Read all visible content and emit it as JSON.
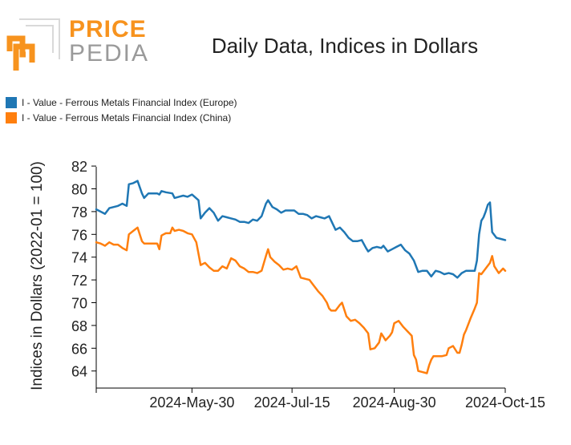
{
  "logo": {
    "word1": "PRICE",
    "word2": "PEDIA"
  },
  "title": "Daily Data, Indices in Dollars",
  "legend": [
    {
      "label": "I - Value - Ferrous Metals Financial Index (Europe)",
      "color": "#1f77b4"
    },
    {
      "label": "I - Value - Ferrous Metals Financial Index (China)",
      "color": "#ff7f0e"
    }
  ],
  "chart_data": {
    "type": "line",
    "title": "Daily Data, Indices in Dollars",
    "xlabel": "",
    "ylabel": "Indices in Dollars (2022-01 = 100)",
    "xlim": [
      0,
      188
    ],
    "ylim": [
      62.5,
      82.5
    ],
    "yticks": [
      64,
      66,
      68,
      70,
      72,
      74,
      76,
      78,
      80,
      82
    ],
    "xticks": [
      {
        "x": 0,
        "label": ""
      },
      {
        "x": 44,
        "label": "2024-May-30"
      },
      {
        "x": 90,
        "label": "2024-Jul-15"
      },
      {
        "x": 137,
        "label": "2024-Aug-30"
      },
      {
        "x": 188,
        "label": "2024-Oct-15"
      }
    ],
    "x_unit": "days since 2024-Apr-16",
    "series": [
      {
        "name": "I - Value - Ferrous Metals Financial Index (Europe)",
        "color": "#1f77b4",
        "points": [
          [
            0,
            78.2
          ],
          [
            2,
            78.0
          ],
          [
            4,
            77.8
          ],
          [
            6,
            78.3
          ],
          [
            8,
            78.4
          ],
          [
            10,
            78.5
          ],
          [
            12,
            78.7
          ],
          [
            14,
            78.5
          ],
          [
            15,
            80.4
          ],
          [
            17,
            80.5
          ],
          [
            19,
            80.7
          ],
          [
            21,
            79.6
          ],
          [
            22,
            79.2
          ],
          [
            24,
            79.6
          ],
          [
            26,
            79.6
          ],
          [
            28,
            79.6
          ],
          [
            29,
            79.5
          ],
          [
            30,
            79.8
          ],
          [
            32,
            79.7
          ],
          [
            35,
            79.6
          ],
          [
            36,
            79.2
          ],
          [
            38,
            79.3
          ],
          [
            40,
            79.4
          ],
          [
            42,
            79.3
          ],
          [
            44,
            79.5
          ],
          [
            47,
            79.0
          ],
          [
            48,
            77.4
          ],
          [
            50,
            77.9
          ],
          [
            52,
            78.3
          ],
          [
            54,
            77.9
          ],
          [
            56,
            77.2
          ],
          [
            58,
            77.6
          ],
          [
            60,
            77.5
          ],
          [
            62,
            77.4
          ],
          [
            64,
            77.3
          ],
          [
            66,
            77.1
          ],
          [
            68,
            77.1
          ],
          [
            70,
            77.0
          ],
          [
            72,
            77.3
          ],
          [
            74,
            77.2
          ],
          [
            76,
            77.6
          ],
          [
            78,
            78.7
          ],
          [
            79,
            79.0
          ],
          [
            81,
            78.4
          ],
          [
            83,
            78.2
          ],
          [
            85,
            77.9
          ],
          [
            87,
            78.1
          ],
          [
            89,
            78.1
          ],
          [
            91,
            78.1
          ],
          [
            93,
            77.8
          ],
          [
            95,
            77.8
          ],
          [
            97,
            77.7
          ],
          [
            99,
            77.4
          ],
          [
            101,
            77.6
          ],
          [
            103,
            77.5
          ],
          [
            105,
            77.4
          ],
          [
            107,
            77.6
          ],
          [
            110,
            76.4
          ],
          [
            112,
            76.6
          ],
          [
            114,
            76.2
          ],
          [
            116,
            75.7
          ],
          [
            118,
            75.4
          ],
          [
            120,
            75.4
          ],
          [
            122,
            75.5
          ],
          [
            124,
            74.8
          ],
          [
            125,
            74.5
          ],
          [
            127,
            74.8
          ],
          [
            129,
            74.9
          ],
          [
            131,
            74.8
          ],
          [
            132,
            75.0
          ],
          [
            134,
            74.5
          ],
          [
            136,
            74.7
          ],
          [
            138,
            74.9
          ],
          [
            140,
            75.1
          ],
          [
            142,
            74.6
          ],
          [
            144,
            74.3
          ],
          [
            146,
            73.7
          ],
          [
            148,
            72.7
          ],
          [
            150,
            72.8
          ],
          [
            152,
            72.8
          ],
          [
            154,
            72.3
          ],
          [
            156,
            72.8
          ],
          [
            158,
            72.7
          ],
          [
            160,
            72.5
          ],
          [
            162,
            72.6
          ],
          [
            164,
            72.5
          ],
          [
            166,
            72.2
          ],
          [
            168,
            72.6
          ],
          [
            170,
            72.8
          ],
          [
            172,
            72.8
          ],
          [
            174,
            72.8
          ],
          [
            175,
            73.7
          ],
          [
            176,
            76.0
          ],
          [
            177,
            77.2
          ],
          [
            178,
            77.5
          ],
          [
            179,
            78.0
          ],
          [
            180,
            78.6
          ],
          [
            181,
            78.8
          ],
          [
            182,
            76.2
          ],
          [
            184,
            75.7
          ],
          [
            186,
            75.6
          ],
          [
            188,
            75.5
          ]
        ]
      },
      {
        "name": "I - Value - Ferrous Metals Financial Index (China)",
        "color": "#ff7f0e",
        "points": [
          [
            0,
            75.3
          ],
          [
            2,
            75.2
          ],
          [
            4,
            75.0
          ],
          [
            6,
            75.3
          ],
          [
            8,
            75.1
          ],
          [
            10,
            75.1
          ],
          [
            12,
            74.8
          ],
          [
            14,
            74.6
          ],
          [
            15,
            76.0
          ],
          [
            17,
            76.3
          ],
          [
            19,
            76.6
          ],
          [
            21,
            75.4
          ],
          [
            22,
            75.2
          ],
          [
            24,
            75.2
          ],
          [
            26,
            75.2
          ],
          [
            28,
            75.2
          ],
          [
            29,
            74.7
          ],
          [
            30,
            75.9
          ],
          [
            32,
            76.1
          ],
          [
            34,
            76.1
          ],
          [
            35,
            76.6
          ],
          [
            36,
            76.3
          ],
          [
            38,
            76.4
          ],
          [
            40,
            76.3
          ],
          [
            42,
            76.1
          ],
          [
            44,
            76.0
          ],
          [
            46,
            75.3
          ],
          [
            48,
            73.3
          ],
          [
            50,
            73.5
          ],
          [
            52,
            73.1
          ],
          [
            54,
            72.8
          ],
          [
            56,
            72.8
          ],
          [
            58,
            73.2
          ],
          [
            60,
            73.0
          ],
          [
            62,
            73.9
          ],
          [
            64,
            73.7
          ],
          [
            66,
            73.2
          ],
          [
            68,
            73.0
          ],
          [
            70,
            72.7
          ],
          [
            72,
            72.7
          ],
          [
            74,
            72.6
          ],
          [
            76,
            72.8
          ],
          [
            78,
            74.1
          ],
          [
            79,
            74.7
          ],
          [
            80,
            74.0
          ],
          [
            82,
            73.6
          ],
          [
            84,
            73.3
          ],
          [
            86,
            72.9
          ],
          [
            88,
            73.0
          ],
          [
            90,
            72.9
          ],
          [
            92,
            73.2
          ],
          [
            94,
            72.2
          ],
          [
            96,
            72.1
          ],
          [
            98,
            72.0
          ],
          [
            100,
            71.5
          ],
          [
            102,
            71.0
          ],
          [
            104,
            70.6
          ],
          [
            106,
            70.0
          ],
          [
            107,
            69.5
          ],
          [
            108,
            69.3
          ],
          [
            110,
            69.3
          ],
          [
            112,
            69.8
          ],
          [
            113,
            70.0
          ],
          [
            115,
            68.8
          ],
          [
            117,
            68.4
          ],
          [
            119,
            68.5
          ],
          [
            121,
            68.2
          ],
          [
            123,
            67.8
          ],
          [
            125,
            67.3
          ],
          [
            126,
            65.9
          ],
          [
            128,
            66.0
          ],
          [
            130,
            66.5
          ],
          [
            131,
            67.3
          ],
          [
            132,
            67.0
          ],
          [
            133,
            66.7
          ],
          [
            135,
            67.1
          ],
          [
            136,
            67.4
          ],
          [
            137,
            68.2
          ],
          [
            139,
            68.4
          ],
          [
            141,
            67.9
          ],
          [
            143,
            67.5
          ],
          [
            145,
            67.1
          ],
          [
            146,
            65.4
          ],
          [
            147,
            65.0
          ],
          [
            148,
            64.0
          ],
          [
            150,
            63.9
          ],
          [
            152,
            63.8
          ],
          [
            153,
            64.5
          ],
          [
            154,
            65.0
          ],
          [
            155,
            65.3
          ],
          [
            157,
            65.3
          ],
          [
            159,
            65.3
          ],
          [
            161,
            65.4
          ],
          [
            162,
            66.0
          ],
          [
            164,
            66.2
          ],
          [
            166,
            65.6
          ],
          [
            167,
            65.6
          ],
          [
            168,
            66.3
          ],
          [
            169,
            67.2
          ],
          [
            170,
            67.6
          ],
          [
            172,
            68.6
          ],
          [
            174,
            69.5
          ],
          [
            175,
            70.0
          ],
          [
            176,
            72.6
          ],
          [
            177,
            72.5
          ],
          [
            179,
            73.0
          ],
          [
            181,
            73.5
          ],
          [
            182,
            74.1
          ],
          [
            183,
            73.2
          ],
          [
            185,
            72.6
          ],
          [
            187,
            73.0
          ],
          [
            188,
            72.8
          ]
        ]
      }
    ]
  }
}
